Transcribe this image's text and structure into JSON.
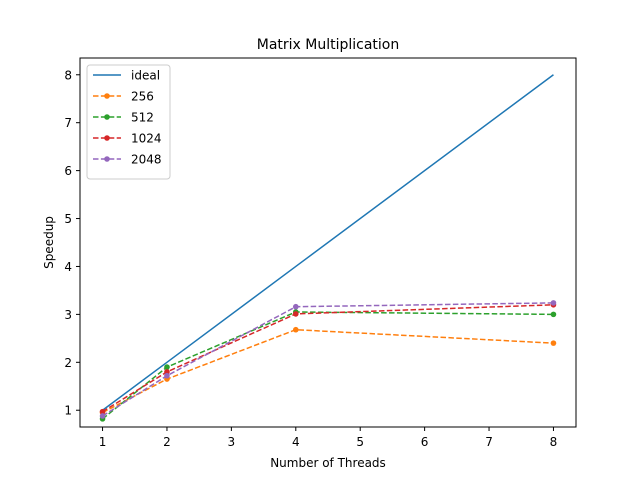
{
  "chart_data": {
    "type": "line",
    "title": "Matrix Multiplication",
    "xlabel": "Number of Threads",
    "ylabel": "Speedup",
    "x": [
      1,
      2,
      4,
      8
    ],
    "xlim": [
      0.65,
      8.35
    ],
    "ylim": [
      0.65,
      8.35
    ],
    "xticks": [
      1,
      2,
      3,
      4,
      5,
      6,
      7,
      8
    ],
    "yticks": [
      1,
      2,
      3,
      4,
      5,
      6,
      7,
      8
    ],
    "grid": false,
    "legend_position": "upper-left",
    "series": [
      {
        "name": "ideal",
        "values": [
          1,
          2,
          4,
          8
        ],
        "color": "#1f77b4",
        "style": "solid",
        "marker": "none"
      },
      {
        "name": "256",
        "values": [
          0.95,
          1.65,
          2.68,
          2.4
        ],
        "color": "#ff7f0e",
        "style": "dashed",
        "marker": "dot"
      },
      {
        "name": "512",
        "values": [
          0.82,
          1.9,
          3.05,
          3.0
        ],
        "color": "#2ca02c",
        "style": "dashed",
        "marker": "dot"
      },
      {
        "name": "1024",
        "values": [
          0.97,
          1.8,
          3.01,
          3.2
        ],
        "color": "#d62728",
        "style": "dashed",
        "marker": "dot"
      },
      {
        "name": "2048",
        "values": [
          0.88,
          1.72,
          3.16,
          3.24
        ],
        "color": "#9467bd",
        "style": "dashed",
        "marker": "dot"
      }
    ]
  }
}
